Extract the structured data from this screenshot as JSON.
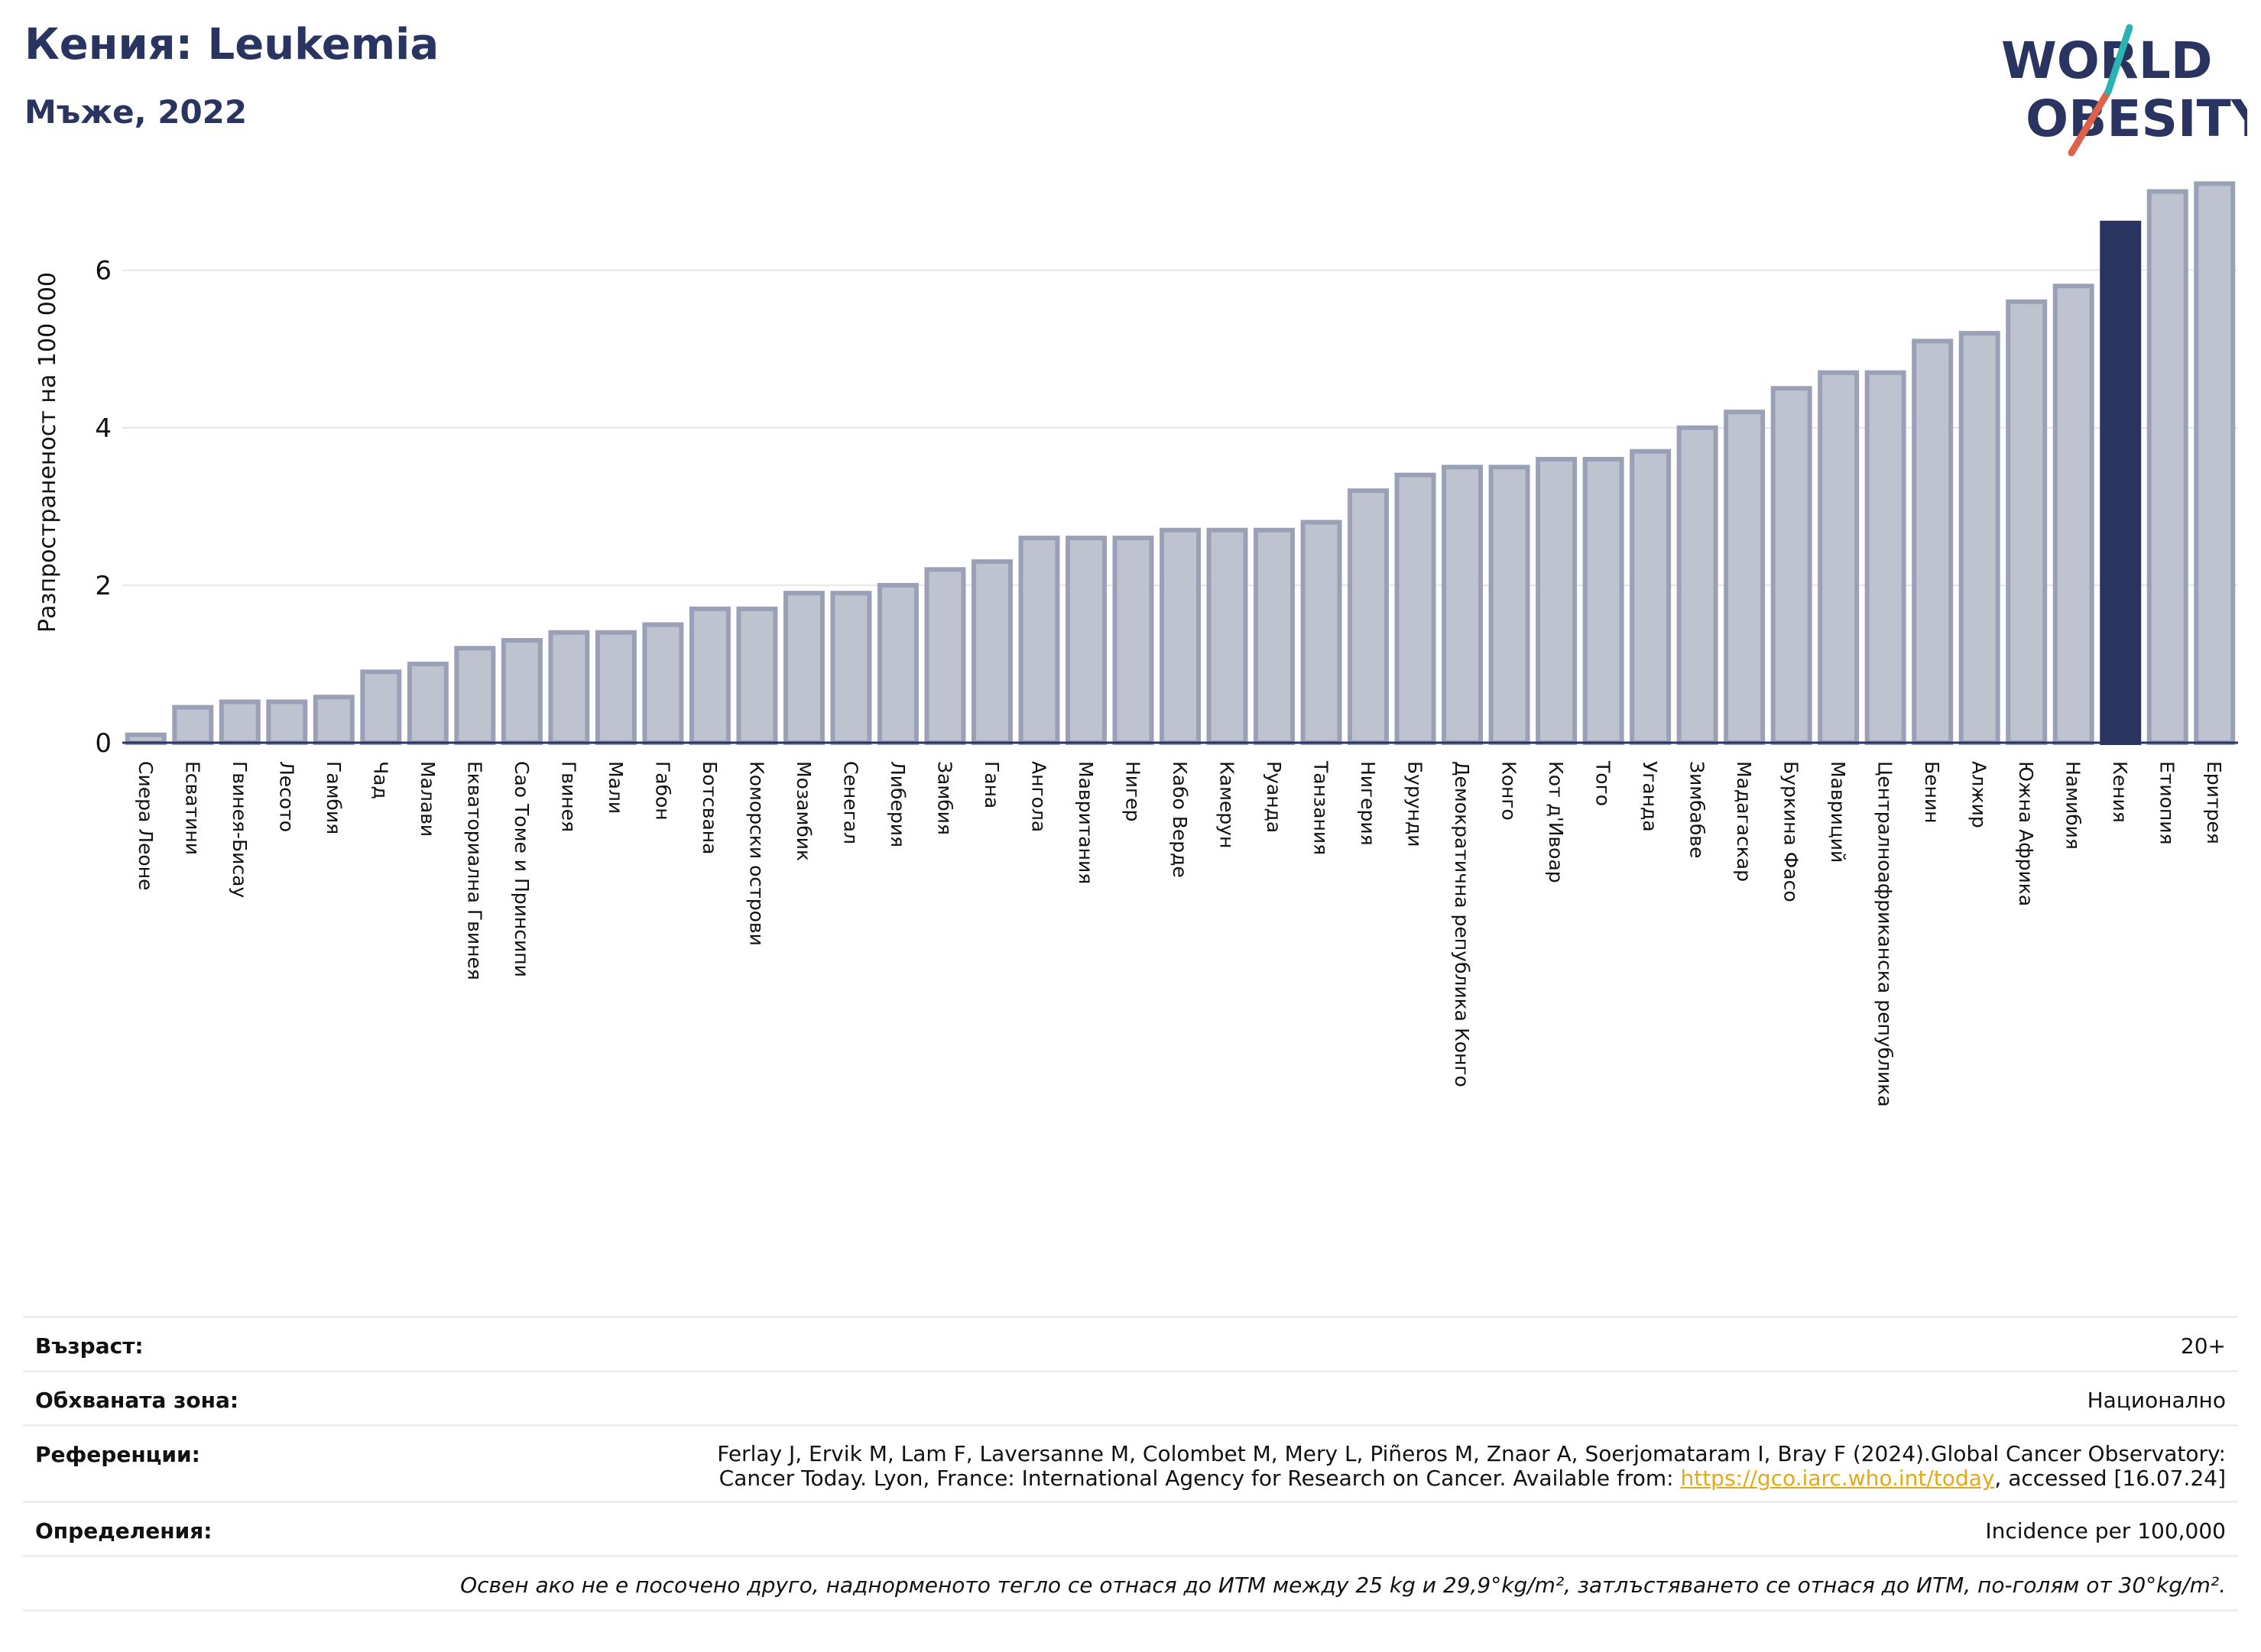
{
  "header": {
    "title": "Кения: Leukemia",
    "subtitle": "Мъже, 2022"
  },
  "logo": {
    "line1": "WORLD",
    "line2": "OBESITY"
  },
  "chart_data": {
    "type": "bar",
    "title": "Кения: Leukemia",
    "subtitle": "Мъже, 2022",
    "xlabel": "",
    "ylabel": "Разпространеност  на 100 000",
    "ylim": [
      0,
      7.2
    ],
    "yticks": [
      0,
      2,
      4,
      6
    ],
    "grid": true,
    "highlight": "Кения",
    "colors": {
      "bar": "#bfc3d0",
      "bar_edge": "#9aa0b6",
      "highlight": "#2a3461",
      "grid": "#e6e6e6",
      "axis": "#2a3461"
    },
    "categories": [
      "Сиера Леоне",
      "Есватини",
      "Гвинея-Бисау",
      "Лесото",
      "Гамбия",
      "Чад",
      "Малави",
      "Екваториална Гвинея",
      "Сао Томе и Принсипи",
      "Гвинея",
      "Мали",
      "Габон",
      "Ботсвана",
      "Коморски острови",
      "Мозамбик",
      "Сенегал",
      "Либерия",
      "Замбия",
      "Гана",
      "Ангола",
      "Мавритания",
      "Нигер",
      "Кабо Верде",
      "Камерун",
      "Руанда",
      "Танзания",
      "Нигерия",
      "Бурунди",
      "Демократична република Конго",
      "Конго",
      "Кот д'Ивоар",
      "Того",
      "Уганда",
      "Зимбабве",
      "Мадагаскар",
      "Буркина Фасо",
      "Мавриций",
      "Централноафриканска република",
      "Бенин",
      "Алжир",
      "Южна Африка",
      "Намибия",
      "Кения",
      "Етиопия",
      "Еритрея"
    ],
    "values": [
      0.1,
      0.45,
      0.52,
      0.52,
      0.58,
      0.9,
      1.0,
      1.2,
      1.3,
      1.4,
      1.4,
      1.5,
      1.7,
      1.7,
      1.9,
      1.9,
      2.0,
      2.2,
      2.3,
      2.6,
      2.6,
      2.6,
      2.7,
      2.7,
      2.7,
      2.8,
      3.2,
      3.4,
      3.5,
      3.5,
      3.6,
      3.6,
      3.7,
      4.0,
      4.2,
      4.5,
      4.7,
      4.7,
      5.1,
      5.2,
      5.6,
      5.8,
      6.6,
      7.0,
      7.1
    ]
  },
  "info": {
    "age_label": "Възраст:",
    "age_value": "20+",
    "area_label": "Обхваната зона:",
    "area_value": "Национално",
    "refs_label": "Референции:",
    "refs_line1": "Ferlay J, Ervik M, Lam F, Laversanne M, Colombet M, Mery L, Piñeros M, Znaor A, Soerjomataram I, Bray F (2024).Global Cancer Observatory:",
    "refs_line2_pre": "Cancer Today. Lyon, France: International Agency for Research on Cancer. Available from: ",
    "refs_link": "https://gco.iarc.who.int/today",
    "refs_line2_post": ", accessed [16.07.24]",
    "defs_label": "Определения:",
    "defs_value": "Incidence per 100,000",
    "note": "Освен ако не е посочено друго, наднорменото тегло се отнася до ИТМ между 25 kg и 29,9°kg/m², затлъстяването се отнася до ИТМ, по-голям от 30°kg/m²."
  }
}
